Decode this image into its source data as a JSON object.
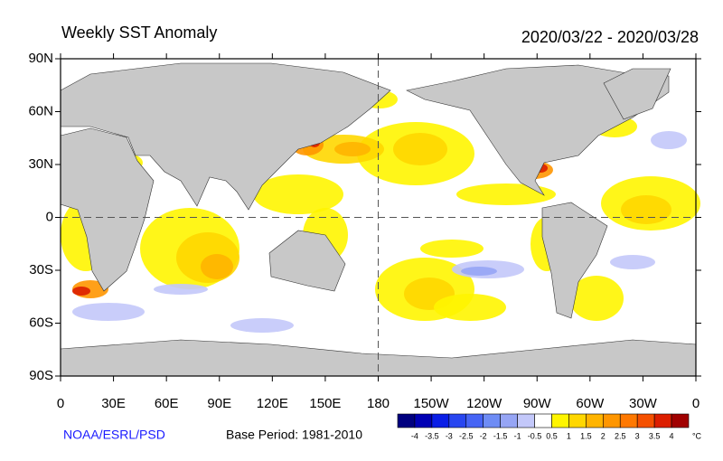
{
  "map": {
    "title": "Weekly SST Anomaly",
    "date_range": "2020/03/22 - 2020/03/28",
    "lat_ticks": [
      {
        "value": 90,
        "label": "90N"
      },
      {
        "value": 60,
        "label": "60N"
      },
      {
        "value": 30,
        "label": "30N"
      },
      0,
      {
        "value": -30,
        "label": "30S"
      },
      {
        "value": -60,
        "label": "60S"
      },
      {
        "value": -90,
        "label": "90S"
      }
    ],
    "lon_ticks": [
      0,
      {
        "value": 30,
        "label": "30E"
      },
      {
        "value": 60,
        "label": "60E"
      },
      {
        "value": 90,
        "label": "90E"
      },
      {
        "value": 120,
        "label": "120E"
      },
      {
        "value": 150,
        "label": "150E"
      },
      180,
      {
        "value": 210,
        "label": "150W"
      },
      {
        "value": 240,
        "label": "120W"
      },
      {
        "value": 270,
        "label": "90W"
      },
      {
        "value": 300,
        "label": "60W"
      },
      {
        "value": 330,
        "label": "30W"
      },
      {
        "value": 360,
        "label": "0"
      }
    ],
    "colorbar": {
      "levels": [
        -4,
        -3.5,
        -3,
        -2.5,
        -2,
        -1.5,
        -1,
        -0.5,
        0.5,
        1,
        1.5,
        2,
        2.5,
        3,
        3.5,
        4
      ],
      "colors": [
        "#00007f",
        "#0000b4",
        "#0a1ee6",
        "#2846f0",
        "#4664f5",
        "#6e8cf5",
        "#96a5f5",
        "#c3c8fa",
        "#ffffff",
        "#fff500",
        "#ffd700",
        "#ffb400",
        "#ff9600",
        "#ff7800",
        "#f55000",
        "#dc1e00",
        "#a00000"
      ],
      "unit": "°C"
    },
    "credit": "NOAA/ESRL/PSD",
    "base_period": "Base Period: 1981-2010"
  }
}
